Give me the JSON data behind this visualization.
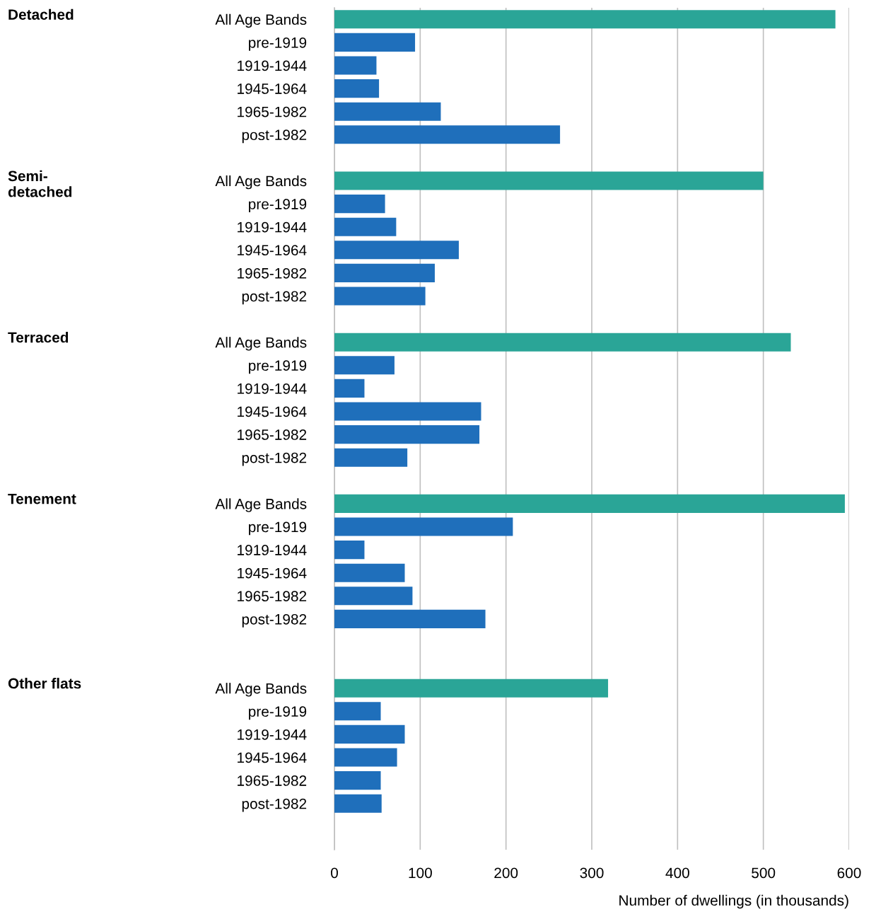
{
  "chart_data": {
    "type": "bar",
    "orientation": "horizontal",
    "categories": [
      "All Age Bands",
      "pre-1919",
      "1919-1944",
      "1945-1964",
      "1965-1982",
      "post-1982",
      null,
      "All Age Bands",
      "pre-1919",
      "1919-1944",
      "1945-1964",
      "1965-1982",
      "post-1982",
      null,
      "All Age Bands",
      "pre-1919",
      "1919-1944",
      "1945-1964",
      "1965-1982",
      "post-1982",
      null,
      "All Age Bands",
      "pre-1919",
      "1919-1944",
      "1945-1964",
      "1965-1982",
      "post-1982",
      null,
      null,
      "All Age Bands",
      "pre-1919",
      "1919-1944",
      "1945-1964",
      "1965-1982",
      "post-1982"
    ],
    "values": [
      584,
      94,
      49,
      52,
      124,
      263,
      null,
      500,
      59,
      72,
      145,
      117,
      106,
      null,
      532,
      70,
      35,
      171,
      169,
      85,
      null,
      595,
      208,
      35,
      82,
      91,
      176,
      null,
      null,
      319,
      54,
      82,
      73,
      54,
      55
    ],
    "colors": [
      "#2aa597",
      "#1f6fbb",
      "#1f6fbb",
      "#1f6fbb",
      "#1f6fbb",
      "#1f6fbb",
      null,
      "#2aa597",
      "#1f6fbb",
      "#1f6fbb",
      "#1f6fbb",
      "#1f6fbb",
      "#1f6fbb",
      null,
      "#2aa597",
      "#1f6fbb",
      "#1f6fbb",
      "#1f6fbb",
      "#1f6fbb",
      "#1f6fbb",
      null,
      "#2aa597",
      "#1f6fbb",
      "#1f6fbb",
      "#1f6fbb",
      "#1f6fbb",
      "#1f6fbb",
      null,
      null,
      "#2aa597",
      "#1f6fbb",
      "#1f6fbb",
      "#1f6fbb",
      "#1f6fbb",
      "#1f6fbb"
    ],
    "annotations": [
      "Detached",
      "Semi-\ndetached",
      "Terraced",
      "Tenement",
      "Other flats"
    ],
    "xlim": [
      0,
      600
    ],
    "xticks": [
      0,
      100,
      200,
      300,
      400,
      500,
      600
    ],
    "grid": "x",
    "xlabel": "Number of dwellings (in thousands)"
  }
}
